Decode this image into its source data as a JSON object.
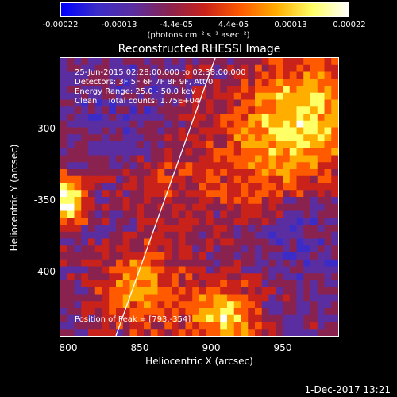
{
  "colorbar": {
    "ticks": [
      "-0.00022",
      "-0.00013",
      "-4.4e-05",
      "4.4e-05",
      "0.00013",
      "0.00022"
    ],
    "unit": "(photons cm⁻² s⁻¹ asec⁻²)",
    "colors": [
      "#0000ff",
      "#3b2cc8",
      "#5a2ea0",
      "#8a2250",
      "#c8221a",
      "#ff5a00",
      "#ffae00",
      "#ffff66",
      "#ffffff"
    ]
  },
  "title": "Reconstructed RHESSI Image",
  "info": {
    "line1": "25-Jun-2015 02:28:00.000 to 02:38:00.000",
    "line2": "Detectors: 3F 5F 6F 7F 8F 9F, Att 0",
    "line3": "Energy Range: 25.0 - 50.0 keV",
    "line4": "Clean    Total counts: 1.75E+04",
    "peak": "Position of Peak = [793,-354]"
  },
  "x_ticks": [
    "800",
    "850",
    "900",
    "950"
  ],
  "y_ticks": [
    "-300",
    "-350",
    "-400"
  ],
  "xlabel": "Heliocentric X (arcsec)",
  "ylabel": "Heliocentric Y (arcsec)",
  "timestamp": "1-Dec-2017 13:21"
}
